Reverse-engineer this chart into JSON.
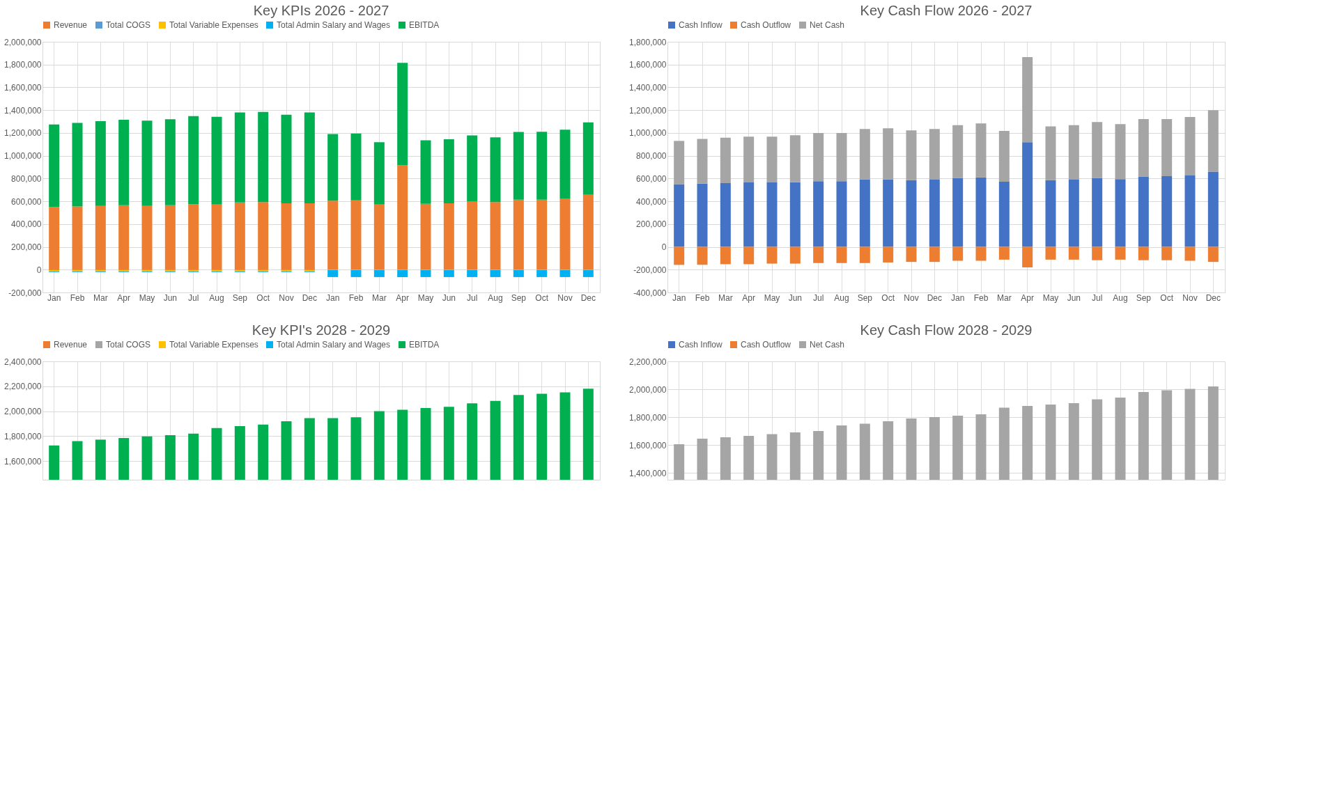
{
  "chart_data": [
    {
      "type": "bar",
      "title": "Key KPIs 2026 - 2027",
      "stacked": true,
      "legend": "top",
      "grid": true,
      "categories": [
        "Jan",
        "Feb",
        "Mar",
        "Apr",
        "May",
        "Jun",
        "Jul",
        "Aug",
        "Sep",
        "Oct",
        "Nov",
        "Dec",
        "Jan",
        "Feb",
        "Mar",
        "Apr",
        "May",
        "Jun",
        "Jul",
        "Aug",
        "Sep",
        "Oct",
        "Nov",
        "Dec"
      ],
      "ylim": [
        -200000,
        2000000
      ],
      "yticks": [
        {
          "value": -200000,
          "label": "-200,000"
        },
        0,
        {
          "value": 200000,
          "label": "200,000"
        },
        {
          "value": 400000,
          "label": "400,000"
        },
        {
          "value": 600000,
          "label": "600,000"
        },
        {
          "value": 800000,
          "label": "800,000"
        },
        {
          "value": 1000000,
          "label": "1,000,000"
        },
        {
          "value": 1200000,
          "label": "1,200,000"
        },
        {
          "value": 1400000,
          "label": "1,400,000"
        },
        {
          "value": 1600000,
          "label": "1,600,000"
        },
        {
          "value": 1800000,
          "label": "1,800,000"
        },
        {
          "value": 2000000,
          "label": "2,000,000"
        }
      ],
      "series": [
        {
          "name": "Revenue",
          "color": "#ed7d31",
          "values": [
            550000,
            555000,
            560000,
            565000,
            560000,
            565000,
            575000,
            572000,
            590000,
            593000,
            582000,
            582000,
            605000,
            608000,
            572000,
            915000,
            577000,
            582000,
            598000,
            593000,
            615000,
            615000,
            625000,
            657000
          ]
        },
        {
          "name": "Total COGS",
          "color": "#5b9bd5",
          "values": [
            -5000,
            -5000,
            -5000,
            -5000,
            -5000,
            -5000,
            -5000,
            -5000,
            -5000,
            -5000,
            -5000,
            -5000,
            null,
            null,
            null,
            null,
            null,
            null,
            null,
            null,
            null,
            null,
            null,
            null
          ]
        },
        {
          "name": "Total Variable Expenses",
          "color": "#ffc000",
          "values": [
            -8000,
            -8000,
            -8000,
            -8000,
            -8000,
            -8000,
            -8000,
            -8000,
            -8000,
            -8000,
            -8000,
            -8000,
            -3000,
            -3000,
            -3000,
            -3000,
            -3000,
            -3000,
            -3000,
            -3000,
            -3000,
            -3000,
            -3000,
            -3000
          ]
        },
        {
          "name": "Total Admin Salary and Wages",
          "color": "#00b0f0",
          "values": [
            -8000,
            -8000,
            -8000,
            -8000,
            -8000,
            -8000,
            -8000,
            -8000,
            -8000,
            -8000,
            -8000,
            -8000,
            -62000,
            -62000,
            -62000,
            -62000,
            -62000,
            -62000,
            -62000,
            -62000,
            -62000,
            -62000,
            -62000,
            -62000
          ]
        },
        {
          "name": "EBITDA",
          "color": "#00b050",
          "values": [
            725000,
            733000,
            743000,
            750000,
            748000,
            755000,
            773000,
            770000,
            790000,
            792000,
            778000,
            798000,
            585000,
            587000,
            546000,
            900000,
            558000,
            563000,
            580000,
            569000,
            593000,
            595000,
            603000,
            636000
          ]
        }
      ]
    },
    {
      "type": "bar",
      "title": "Key Cash Flow 2026 - 2027",
      "stacked": true,
      "legend": "top",
      "grid": true,
      "categories": [
        "Jan",
        "Feb",
        "Mar",
        "Apr",
        "May",
        "Jun",
        "Jul",
        "Aug",
        "Sep",
        "Oct",
        "Nov",
        "Dec",
        "Jan",
        "Feb",
        "Mar",
        "Apr",
        "May",
        "Jun",
        "Jul",
        "Aug",
        "Sep",
        "Oct",
        "Nov",
        "Dec"
      ],
      "ylim": [
        -400000,
        1800000
      ],
      "yticks": [
        {
          "value": -400000,
          "label": "-400,000"
        },
        {
          "value": -200000,
          "label": "-200,000"
        },
        0,
        {
          "value": 200000,
          "label": "200,000"
        },
        {
          "value": 400000,
          "label": "400,000"
        },
        {
          "value": 600000,
          "label": "600,000"
        },
        {
          "value": 800000,
          "label": "800,000"
        },
        {
          "value": 1000000,
          "label": "1,000,000"
        },
        {
          "value": 1200000,
          "label": "1,200,000"
        },
        {
          "value": 1400000,
          "label": "1,400,000"
        },
        {
          "value": 1600000,
          "label": "1,600,000"
        },
        {
          "value": 1800000,
          "label": "1,800,000"
        }
      ],
      "series": [
        {
          "name": "Cash Inflow",
          "color": "#4472c4",
          "values": [
            550000,
            555000,
            560000,
            565000,
            565000,
            567000,
            577000,
            577000,
            593000,
            593000,
            585000,
            590000,
            605000,
            610000,
            572000,
            918000,
            585000,
            590000,
            605000,
            595000,
            617000,
            620000,
            627000,
            660000
          ]
        },
        {
          "name": "Cash Outflow",
          "color": "#ed7d31",
          "values": [
            -158000,
            -157000,
            -152000,
            -152000,
            -147000,
            -147000,
            -142000,
            -142000,
            -142000,
            -137000,
            -132000,
            -132000,
            -122000,
            -122000,
            -112000,
            -180000,
            -112000,
            -112000,
            -117000,
            -112000,
            -117000,
            -117000,
            -122000,
            -132000
          ]
        },
        {
          "name": "Net Cash",
          "color": "#a5a5a5",
          "values": [
            380000,
            392000,
            398000,
            403000,
            403000,
            413000,
            423000,
            423000,
            442000,
            447000,
            437000,
            445000,
            463000,
            473000,
            446000,
            747000,
            473000,
            478000,
            490000,
            483000,
            505000,
            502000,
            513000,
            540000
          ]
        }
      ]
    },
    {
      "type": "bar",
      "title": "Key KPI's 2028 - 2029",
      "legend": "top",
      "grid": true,
      "categories": [
        null,
        null,
        null,
        null,
        null,
        null,
        null,
        null,
        null,
        null,
        null,
        null,
        null,
        null,
        null,
        null,
        null,
        null,
        null,
        null,
        null,
        null,
        null,
        null
      ],
      "ylim": [
        1450000,
        2400000
      ],
      "yticks": [
        {
          "value": 1600000,
          "label": "1,600,000"
        },
        {
          "value": 1800000,
          "label": "1,800,000"
        },
        {
          "value": 2000000,
          "label": "2,000,000"
        },
        {
          "value": 2200000,
          "label": "2,200,000"
        },
        {
          "value": 2400000,
          "label": "2,400,000"
        }
      ],
      "series": [
        {
          "name": "Revenue",
          "color": "#ed7d31",
          "values": [
            null,
            null,
            null,
            null,
            null,
            null,
            null,
            null,
            null,
            null,
            null,
            null,
            null,
            null,
            null,
            null,
            null,
            null,
            null,
            null,
            null,
            null,
            null,
            null
          ]
        },
        {
          "name": "Total COGS",
          "color": "#a5a5a5",
          "values": [
            null,
            null,
            null,
            null,
            null,
            null,
            null,
            null,
            null,
            null,
            null,
            null,
            null,
            null,
            null,
            null,
            null,
            null,
            null,
            null,
            null,
            null,
            null,
            null
          ]
        },
        {
          "name": "Total Variable Expenses",
          "color": "#ffc000",
          "values": [
            null,
            null,
            null,
            null,
            null,
            null,
            null,
            null,
            null,
            null,
            null,
            null,
            null,
            null,
            null,
            null,
            null,
            null,
            null,
            null,
            null,
            null,
            null,
            null
          ]
        },
        {
          "name": "Total Admin Salary and Wages",
          "color": "#00b0f0",
          "values": [
            null,
            null,
            null,
            null,
            null,
            null,
            null,
            null,
            null,
            null,
            null,
            null,
            null,
            null,
            null,
            null,
            null,
            null,
            null,
            null,
            null,
            null,
            null,
            null
          ]
        },
        {
          "name": "EBITDA",
          "color": "#00b050",
          "values": [
            1725000,
            1760000,
            1772000,
            1785000,
            1798000,
            1808000,
            1820000,
            1865000,
            1880000,
            1893000,
            1920000,
            1945000,
            1945000,
            1952000,
            2000000,
            2012000,
            2025000,
            2035000,
            2063000,
            2083000,
            2130000,
            2140000,
            2152000,
            2180000
          ]
        }
      ]
    },
    {
      "type": "bar",
      "title": "Key Cash Flow 2028 - 2029",
      "legend": "top",
      "grid": true,
      "categories": [
        null,
        null,
        null,
        null,
        null,
        null,
        null,
        null,
        null,
        null,
        null,
        null,
        null,
        null,
        null,
        null,
        null,
        null,
        null,
        null,
        null,
        null,
        null,
        null
      ],
      "ylim": [
        1350000,
        2200000
      ],
      "yticks": [
        {
          "value": 1400000,
          "label": "1,400,000"
        },
        {
          "value": 1600000,
          "label": "1,600,000"
        },
        {
          "value": 1800000,
          "label": "1,800,000"
        },
        {
          "value": 2000000,
          "label": "2,000,000"
        },
        {
          "value": 2200000,
          "label": "2,200,000"
        }
      ],
      "series": [
        {
          "name": "Cash Inflow",
          "color": "#4472c4",
          "values": [
            null,
            null,
            null,
            null,
            null,
            null,
            null,
            null,
            null,
            null,
            null,
            null,
            null,
            null,
            null,
            null,
            null,
            null,
            null,
            null,
            null,
            null,
            null,
            null
          ]
        },
        {
          "name": "Cash Outflow",
          "color": "#ed7d31",
          "values": [
            null,
            null,
            null,
            null,
            null,
            null,
            null,
            null,
            null,
            null,
            null,
            null,
            null,
            null,
            null,
            null,
            null,
            null,
            null,
            null,
            null,
            null,
            null,
            null
          ]
        },
        {
          "name": "Net Cash",
          "color": "#a5a5a5",
          "values": [
            1605000,
            1645000,
            1655000,
            1665000,
            1678000,
            1690000,
            1700000,
            1740000,
            1752000,
            1770000,
            1790000,
            1800000,
            1810000,
            1820000,
            1868000,
            1880000,
            1890000,
            1900000,
            1928000,
            1940000,
            1980000,
            1993000,
            2002000,
            2020000
          ]
        }
      ]
    }
  ]
}
